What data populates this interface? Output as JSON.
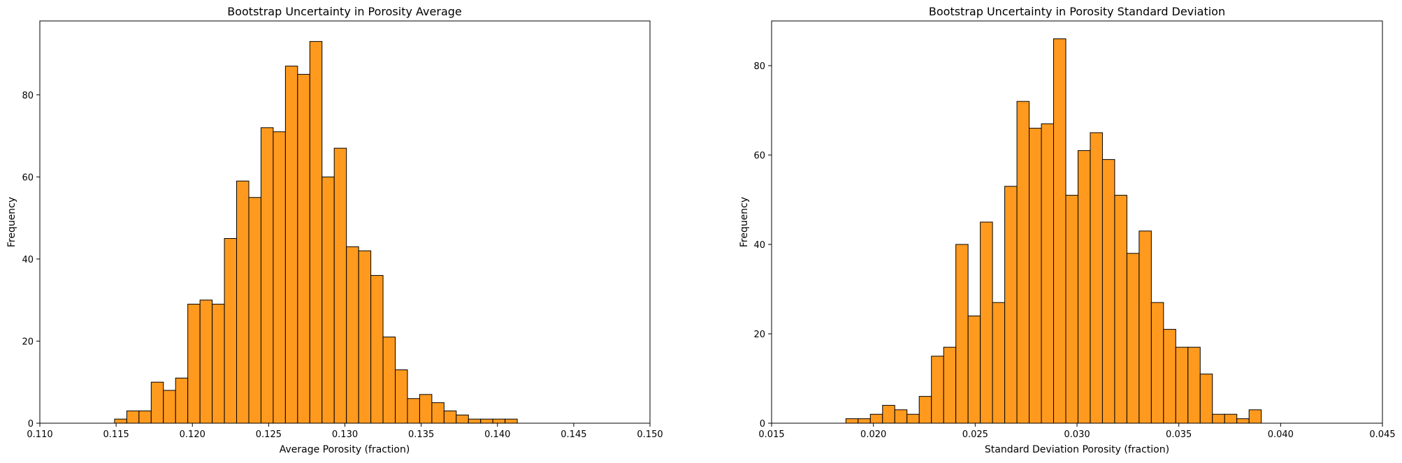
{
  "chart_data": [
    {
      "type": "bar",
      "title": "Bootstrap Uncertainty in Porosity Average",
      "xlabel": "Average Porosity (fraction)",
      "ylabel": "Frequency",
      "xlim": [
        0.11,
        0.15
      ],
      "ylim": [
        0,
        98
      ],
      "xticks": [
        "0.110",
        "0.115",
        "0.120",
        "0.125",
        "0.130",
        "0.135",
        "0.140",
        "0.145",
        "0.150"
      ],
      "yticks": [
        "0",
        "20",
        "40",
        "60",
        "80"
      ],
      "bar_color": "#ff9a1e",
      "edge_color": "#000000",
      "grid": false,
      "bins": [
        {
          "x0": 0.1149,
          "x1": 0.1157,
          "count": 1
        },
        {
          "x0": 0.1157,
          "x1": 0.1165,
          "count": 3
        },
        {
          "x0": 0.1165,
          "x1": 0.1173,
          "count": 3
        },
        {
          "x0": 0.1173,
          "x1": 0.1181,
          "count": 10
        },
        {
          "x0": 0.1181,
          "x1": 0.1189,
          "count": 8
        },
        {
          "x0": 0.1189,
          "x1": 0.1197,
          "count": 11
        },
        {
          "x0": 0.1197,
          "x1": 0.1205,
          "count": 29
        },
        {
          "x0": 0.1205,
          "x1": 0.1213,
          "count": 30
        },
        {
          "x0": 0.1213,
          "x1": 0.1221,
          "count": 29
        },
        {
          "x0": 0.1221,
          "x1": 0.1229,
          "count": 45
        },
        {
          "x0": 0.1229,
          "x1": 0.1237,
          "count": 59
        },
        {
          "x0": 0.1237,
          "x1": 0.1245,
          "count": 55
        },
        {
          "x0": 0.1245,
          "x1": 0.1253,
          "count": 72
        },
        {
          "x0": 0.1253,
          "x1": 0.1261,
          "count": 71
        },
        {
          "x0": 0.1261,
          "x1": 0.1269,
          "count": 87
        },
        {
          "x0": 0.1269,
          "x1": 0.1277,
          "count": 85
        },
        {
          "x0": 0.1277,
          "x1": 0.1285,
          "count": 93
        },
        {
          "x0": 0.1285,
          "x1": 0.1293,
          "count": 60
        },
        {
          "x0": 0.1293,
          "x1": 0.1301,
          "count": 67
        },
        {
          "x0": 0.1301,
          "x1": 0.1309,
          "count": 43
        },
        {
          "x0": 0.1309,
          "x1": 0.1317,
          "count": 42
        },
        {
          "x0": 0.1317,
          "x1": 0.1325,
          "count": 36
        },
        {
          "x0": 0.1325,
          "x1": 0.1333,
          "count": 21
        },
        {
          "x0": 0.1333,
          "x1": 0.1341,
          "count": 13
        },
        {
          "x0": 0.1341,
          "x1": 0.1349,
          "count": 6
        },
        {
          "x0": 0.1349,
          "x1": 0.1357,
          "count": 7
        },
        {
          "x0": 0.1357,
          "x1": 0.1365,
          "count": 5
        },
        {
          "x0": 0.1365,
          "x1": 0.1373,
          "count": 3
        },
        {
          "x0": 0.1373,
          "x1": 0.1381,
          "count": 2
        },
        {
          "x0": 0.1381,
          "x1": 0.1389,
          "count": 1
        },
        {
          "x0": 0.1389,
          "x1": 0.1397,
          "count": 1
        },
        {
          "x0": 0.1397,
          "x1": 0.1405,
          "count": 1
        },
        {
          "x0": 0.1405,
          "x1": 0.1413,
          "count": 1
        }
      ]
    },
    {
      "type": "bar",
      "title": "Bootstrap Uncertainty in Porosity Standard Deviation",
      "xlabel": "Standard Deviation Porosity (fraction)",
      "ylabel": "Frequency",
      "xlim": [
        0.015,
        0.045
      ],
      "ylim": [
        0,
        90
      ],
      "xticks": [
        "0.015",
        "0.020",
        "0.025",
        "0.030",
        "0.035",
        "0.040",
        "0.045"
      ],
      "yticks": [
        "0",
        "20",
        "40",
        "60",
        "80"
      ],
      "bar_color": "#ff9a1e",
      "edge_color": "#000000",
      "grid": false,
      "bins": [
        {
          "x0": 0.01865,
          "x1": 0.01925,
          "count": 1
        },
        {
          "x0": 0.01925,
          "x1": 0.01985,
          "count": 1
        },
        {
          "x0": 0.01985,
          "x1": 0.02045,
          "count": 2
        },
        {
          "x0": 0.02045,
          "x1": 0.02105,
          "count": 4
        },
        {
          "x0": 0.02105,
          "x1": 0.02165,
          "count": 3
        },
        {
          "x0": 0.02165,
          "x1": 0.02225,
          "count": 2
        },
        {
          "x0": 0.02225,
          "x1": 0.02285,
          "count": 6
        },
        {
          "x0": 0.02285,
          "x1": 0.02345,
          "count": 15
        },
        {
          "x0": 0.02345,
          "x1": 0.02405,
          "count": 17
        },
        {
          "x0": 0.02405,
          "x1": 0.02465,
          "count": 40
        },
        {
          "x0": 0.02465,
          "x1": 0.02525,
          "count": 24
        },
        {
          "x0": 0.02525,
          "x1": 0.02585,
          "count": 45
        },
        {
          "x0": 0.02585,
          "x1": 0.02645,
          "count": 27
        },
        {
          "x0": 0.02645,
          "x1": 0.02705,
          "count": 53
        },
        {
          "x0": 0.02705,
          "x1": 0.02765,
          "count": 72
        },
        {
          "x0": 0.02765,
          "x1": 0.02825,
          "count": 66
        },
        {
          "x0": 0.02825,
          "x1": 0.02885,
          "count": 67
        },
        {
          "x0": 0.02885,
          "x1": 0.02945,
          "count": 86
        },
        {
          "x0": 0.02945,
          "x1": 0.03005,
          "count": 51
        },
        {
          "x0": 0.03005,
          "x1": 0.03065,
          "count": 61
        },
        {
          "x0": 0.03065,
          "x1": 0.03125,
          "count": 65
        },
        {
          "x0": 0.03125,
          "x1": 0.03185,
          "count": 59
        },
        {
          "x0": 0.03185,
          "x1": 0.03245,
          "count": 51
        },
        {
          "x0": 0.03245,
          "x1": 0.03305,
          "count": 38
        },
        {
          "x0": 0.03305,
          "x1": 0.03365,
          "count": 43
        },
        {
          "x0": 0.03365,
          "x1": 0.03425,
          "count": 27
        },
        {
          "x0": 0.03425,
          "x1": 0.03485,
          "count": 21
        },
        {
          "x0": 0.03485,
          "x1": 0.03545,
          "count": 17
        },
        {
          "x0": 0.03545,
          "x1": 0.03605,
          "count": 17
        },
        {
          "x0": 0.03605,
          "x1": 0.03665,
          "count": 11
        },
        {
          "x0": 0.03665,
          "x1": 0.03725,
          "count": 2
        },
        {
          "x0": 0.03725,
          "x1": 0.03785,
          "count": 2
        },
        {
          "x0": 0.03785,
          "x1": 0.03845,
          "count": 1
        },
        {
          "x0": 0.03845,
          "x1": 0.03905,
          "count": 3
        }
      ]
    }
  ]
}
